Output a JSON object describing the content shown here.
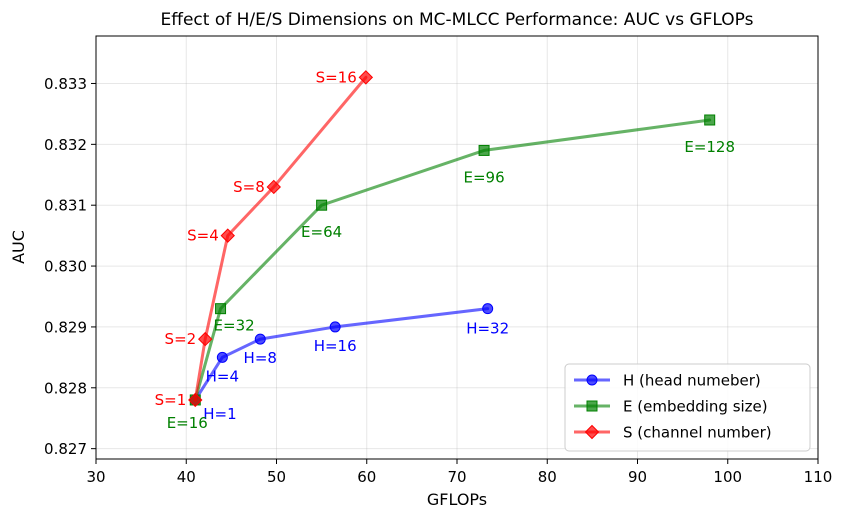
{
  "chart_data": {
    "type": "line",
    "title": "Effect of H/E/S Dimensions on MC-MLCC Performance: AUC vs GFLOPs",
    "xlabel": "GFLOPs",
    "ylabel": "AUC",
    "xlim": [
      30,
      110
    ],
    "ylim": [
      0.82683,
      0.83378
    ],
    "xticks": [
      30,
      40,
      50,
      60,
      70,
      80,
      90,
      100,
      110
    ],
    "yticks": [
      0.827,
      0.828,
      0.829,
      0.83,
      0.831,
      0.832,
      0.833
    ],
    "ytick_labels": [
      "0.827",
      "0.828",
      "0.829",
      "0.830",
      "0.831",
      "0.832",
      "0.833"
    ],
    "grid": true,
    "legend_position": "bottom-right",
    "series": [
      {
        "name": "H (head numeber)",
        "color": "#0000ff",
        "marker": "circle",
        "x": [
          41.0,
          44.0,
          48.2,
          56.5,
          73.4
        ],
        "y": [
          0.8278,
          0.8285,
          0.8288,
          0.829,
          0.8293
        ],
        "labels": [
          "H=1",
          "H=4",
          "H=8",
          "H=16",
          "H=32"
        ]
      },
      {
        "name": "E (embedding size)",
        "color": "#008000",
        "marker": "square",
        "x": [
          41.0,
          43.8,
          55.0,
          73.0,
          98.0
        ],
        "y": [
          0.8278,
          0.8293,
          0.831,
          0.8319,
          0.8324
        ],
        "labels": [
          "E=16",
          "E=32",
          "E=64",
          "E=96",
          "E=128"
        ]
      },
      {
        "name": "S (channel number)",
        "color": "#ff0000",
        "marker": "diamond",
        "x": [
          41.0,
          42.1,
          44.6,
          49.7,
          59.9
        ],
        "y": [
          0.8278,
          0.8288,
          0.8305,
          0.8313,
          0.8331
        ],
        "labels": [
          "S=1",
          "S=2",
          "S=4",
          "S=8",
          "S=16"
        ]
      }
    ]
  }
}
